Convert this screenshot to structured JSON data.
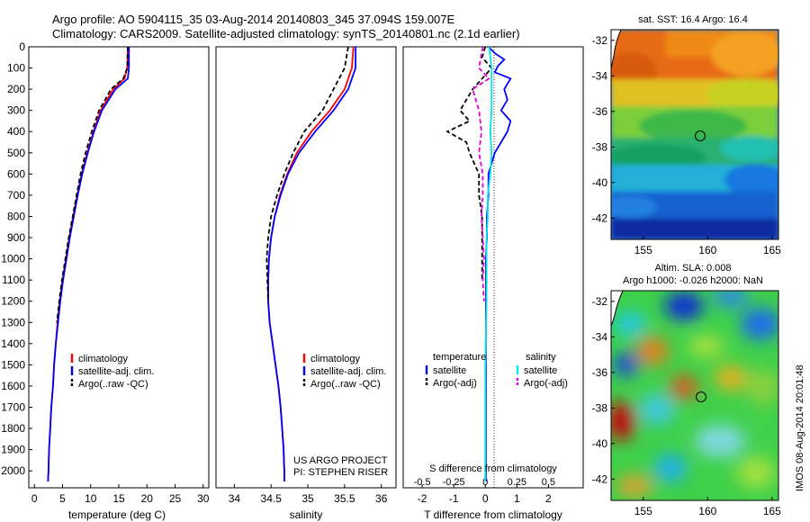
{
  "header": {
    "line1": "Argo profile: AO 5904115_35 03-Aug-2014 20140803_345 37.094S 159.007E",
    "line2": "Climatology: CARS2009. Satellite-adjusted climatology: synTS_20140801.nc (2.1d earlier)"
  },
  "colors": {
    "climatology": "#ff0000",
    "satellite": "#0000ff",
    "argo": "#000000",
    "salinity_satellite": "#00e5e5",
    "salinity_argo": "#e000e0"
  },
  "credit": {
    "line1": "US ARGO PROJECT",
    "line2": "PI: STEPHEN RISER"
  },
  "stamp": "IMOS 08-Aug-2014 20:01:48",
  "depth_ticks": [
    "0",
    "100",
    "200",
    "300",
    "400",
    "500",
    "600",
    "700",
    "800",
    "900",
    "1000",
    "1100",
    "1200",
    "1300",
    "1400",
    "1500",
    "1600",
    "1700",
    "1800",
    "1900",
    "2000"
  ],
  "chart_data": [
    {
      "type": "line",
      "id": "temperature",
      "xlabel": "temperature (deg C)",
      "xlim": [
        -1,
        31
      ],
      "ylim": [
        2080,
        0
      ],
      "xticks": [
        "0",
        "5",
        "10",
        "15",
        "20",
        "25",
        "30"
      ],
      "legend": [
        "climatology",
        "satellite-adj. clim.",
        "Argo(..raw -QC)"
      ],
      "series": [
        {
          "name": "climatology",
          "color": "#ff0000",
          "depth": [
            0,
            100,
            150,
            200,
            300,
            400,
            500,
            600,
            700,
            800,
            900,
            1000,
            1100,
            1200,
            1300,
            1400,
            1500,
            1600,
            1700,
            1800,
            1900,
            2000,
            2050
          ],
          "values": [
            16.6,
            16.5,
            16.0,
            14.0,
            11.8,
            10.5,
            9.4,
            8.4,
            7.6,
            6.9,
            6.2,
            5.6,
            5.0,
            4.5,
            4.1,
            3.8,
            3.5,
            3.3,
            3.0,
            2.8,
            2.6,
            2.5,
            2.4
          ]
        },
        {
          "name": "satellite-adj. clim.",
          "color": "#0000ff",
          "depth": [
            0,
            100,
            150,
            200,
            300,
            400,
            500,
            600,
            700,
            800,
            900,
            1000,
            1100,
            1200,
            1300,
            1400,
            1500,
            1600,
            1700,
            1800,
            1900,
            2000,
            2050
          ],
          "values": [
            16.8,
            16.8,
            16.6,
            14.4,
            12.0,
            10.6,
            9.5,
            8.5,
            7.7,
            7.0,
            6.3,
            5.7,
            5.1,
            4.6,
            4.2,
            3.8,
            3.5,
            3.3,
            3.0,
            2.8,
            2.6,
            2.5,
            2.4
          ]
        },
        {
          "name": "Argo(..raw -QC)",
          "color": "#000000",
          "dashed": true,
          "depth": [
            0,
            100,
            150,
            200,
            300,
            400,
            500,
            600,
            700,
            800,
            900,
            1000,
            1100,
            1200,
            1300
          ],
          "values": [
            16.6,
            16.5,
            15.8,
            13.6,
            11.5,
            10.2,
            9.1,
            8.2,
            7.5,
            6.8,
            6.1,
            5.5,
            4.9,
            4.4,
            4.0
          ]
        }
      ]
    },
    {
      "type": "line",
      "id": "salinity",
      "xlabel": "salinity",
      "xlim": [
        33.75,
        36.2
      ],
      "ylim": [
        2080,
        0
      ],
      "xticks": [
        "34",
        "34.5",
        "35",
        "35.5",
        "36"
      ],
      "legend": [
        "climatology",
        "satellite-adj. clim.",
        "Argo(..raw -QC)"
      ],
      "series": [
        {
          "name": "climatology",
          "color": "#ff0000",
          "depth": [
            0,
            100,
            200,
            300,
            400,
            500,
            600,
            700,
            800,
            900,
            1000,
            1100,
            1200,
            1300,
            1400,
            1500,
            1600,
            1700,
            1800,
            1900,
            2000,
            2050
          ],
          "values": [
            35.62,
            35.6,
            35.5,
            35.3,
            35.05,
            34.85,
            34.72,
            34.62,
            34.55,
            34.5,
            34.47,
            34.46,
            34.46,
            34.48,
            34.52,
            34.56,
            34.6,
            34.63,
            34.65,
            34.67,
            34.68,
            34.68
          ]
        },
        {
          "name": "satellite-adj. clim.",
          "color": "#0000ff",
          "depth": [
            0,
            100,
            200,
            300,
            400,
            500,
            600,
            700,
            800,
            900,
            1000,
            1100,
            1200,
            1300,
            1400,
            1500,
            1600,
            1700,
            1800,
            1900,
            2000,
            2050
          ],
          "values": [
            35.65,
            35.65,
            35.55,
            35.35,
            35.1,
            34.88,
            34.73,
            34.63,
            34.55,
            34.5,
            34.47,
            34.46,
            34.46,
            34.48,
            34.52,
            34.56,
            34.6,
            34.63,
            34.65,
            34.67,
            34.68,
            34.68
          ]
        },
        {
          "name": "Argo(..raw -QC)",
          "color": "#000000",
          "dashed": true,
          "depth": [
            0,
            100,
            200,
            300,
            400,
            500,
            600,
            700,
            800,
            900,
            1000,
            1100,
            1200
          ],
          "values": [
            35.55,
            35.5,
            35.35,
            35.2,
            34.95,
            34.8,
            34.68,
            34.58,
            34.5,
            34.46,
            34.44,
            34.45,
            34.46
          ]
        }
      ]
    },
    {
      "type": "line",
      "id": "differences",
      "xlabel_top": "S difference from climatology",
      "xlabel": "T difference from climatology",
      "xlim_T": [
        -2.6,
        3.1
      ],
      "ylim": [
        2080,
        0
      ],
      "xticks_T": [
        "-2",
        "-1",
        "0",
        "1",
        "2"
      ],
      "xticks_S": [
        "-0.5",
        "-0.25",
        "0",
        "0.25",
        "0.5"
      ],
      "legend": {
        "temperature_title": "temperature",
        "salinity_title": "salinity",
        "temperature": [
          "satellite",
          "Argo(-adj)"
        ],
        "salinity": [
          "satellite",
          "Argo(-adj)"
        ]
      },
      "series": [
        {
          "name": "temperature satellite",
          "color": "#0000ff",
          "depth": [
            0,
            30,
            60,
            90,
            120,
            150,
            200,
            250,
            300,
            350,
            400,
            450,
            500,
            600,
            700,
            800,
            900,
            1000,
            1100,
            1200,
            1300,
            1500,
            1700,
            1900,
            2050
          ],
          "values": [
            0.1,
            0.3,
            0.6,
            0.4,
            0.3,
            0.8,
            0.6,
            0.7,
            0.5,
            0.8,
            0.7,
            0.5,
            0.3,
            0.1,
            0.1,
            0.05,
            0.05,
            0.02,
            0.02,
            0.02,
            0.02,
            0.02,
            0.02,
            0.02,
            0.02
          ]
        },
        {
          "name": "temperature Argo(-adj)",
          "color": "#000000",
          "dashed": true,
          "depth": [
            0,
            50,
            100,
            150,
            200,
            250,
            300,
            350,
            400,
            450,
            500,
            600,
            700,
            800,
            900,
            1000,
            1100
          ],
          "values": [
            0.0,
            -0.1,
            0.2,
            -0.1,
            -0.4,
            -0.6,
            -0.8,
            -0.5,
            -1.2,
            -0.6,
            -0.5,
            -0.2,
            -0.2,
            -0.1,
            -0.1,
            -0.1,
            -0.1
          ]
        },
        {
          "name": "salinity satellite",
          "color": "#00e5e5",
          "depth": [
            0,
            100,
            200,
            300,
            400,
            500,
            600,
            700,
            800,
            900,
            1000,
            1200,
            1500,
            1800,
            2050
          ],
          "values": [
            0.03,
            0.05,
            0.05,
            0.05,
            0.04,
            0.05,
            0.04,
            0.02,
            0.02,
            0.01,
            0.01,
            0.01,
            0.0,
            0.0,
            0.0
          ]
        },
        {
          "name": "salinity Argo(-adj)",
          "color": "#e000e0",
          "dashed": true,
          "depth": [
            0,
            100,
            150,
            200,
            300,
            400,
            500,
            600,
            700,
            800,
            900,
            1000,
            1100,
            1200
          ],
          "values": [
            -0.02,
            -0.05,
            0.03,
            -0.1,
            -0.05,
            -0.03,
            -0.05,
            -0.02,
            -0.02,
            -0.03,
            -0.02,
            -0.01,
            -0.02,
            -0.01
          ]
        }
      ]
    }
  ],
  "maps": {
    "sst": {
      "title": "sat. SST: 16.4 Argo: 16.4",
      "xticks": [
        "155",
        "160",
        "165"
      ],
      "yticks": [
        "-32",
        "-34",
        "-36",
        "-38",
        "-40",
        "-42"
      ]
    },
    "sla": {
      "title1": "Altim. SLA: 0.008",
      "title2": "Argo h1000: -0.026 h2000: NaN",
      "xticks": [
        "155",
        "160",
        "165"
      ],
      "yticks": [
        "-32",
        "-34",
        "-36",
        "-38",
        "-40",
        "-42"
      ]
    }
  }
}
